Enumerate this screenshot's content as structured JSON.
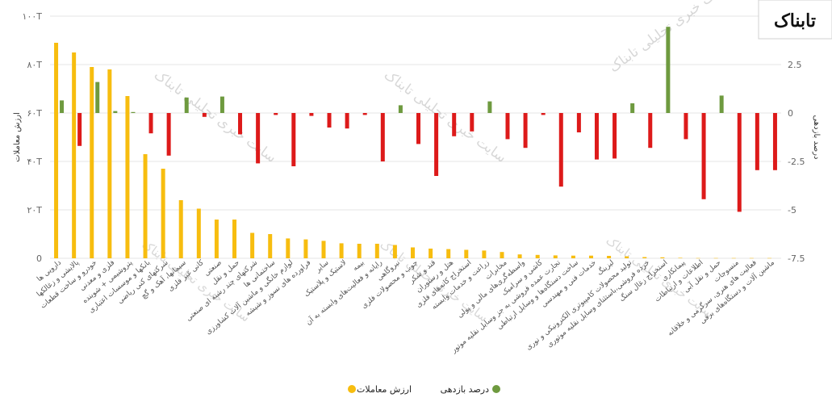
{
  "chart_data": {
    "type": "bar",
    "categories": [
      "دارویی ها",
      "پالایشی و زغالکها",
      "خودرو و ساخت قطعات",
      "فلزی و معدنی",
      "پتروشیمی + شوینده",
      "بانکها و موسسات اعتباری",
      "شرکتهای کنی ریاضی",
      "سیمانها، آهک و گچ",
      "کانی غیر فلزی",
      "صنعتی",
      "حمل و نقل",
      "شرکتهای چند رشته ای صنعتی",
      "ساختمانی ها",
      "لوازم خانگی و ماشین آلات کشاورزی",
      "فراورده های نسوز و شیشه",
      "سایر",
      "لاستیک و پلاستیک",
      "بیمه",
      "رایانه و فعالیت‌های وابسته به آن",
      "نیروگاهی",
      "چوب و محصولات فلزی",
      "قند و شکر",
      "هتل و رستوران",
      "استخراج کانه‌های فلزی",
      "زراعت و خدمات وابسته",
      "مخابرات",
      "واسطه‌گری‌های مالی و پولی",
      "کاشی و سرامیک",
      "تجارت عمده فروشی به جز وسایل نقلیه موتور",
      "ساخت دستگاه‌ها و وسایل ارتباطی",
      "خدمات فنی و مهندسی",
      "لیزینگ",
      "تولید محصولات کامپیوتری الکترونیکی و نوری",
      "خرده فروشی،باستثنای وسایل نقلیه موتوری",
      "استخراج زغال سنگ",
      "پیمانکاری",
      "اطلاعات و ارتباطات",
      "حمل و نقل آبی",
      "منسوجات",
      "فعالیت های هنری، سرگرمی و خلاقانه",
      "ماشین آلات و دستگاه‌های برقی"
    ],
    "series": [
      {
        "name": "ارزش معاملات",
        "axis": "left",
        "color": "#F7BD0F",
        "values": [
          89,
          85,
          79,
          78,
          67,
          43,
          37,
          24,
          20.5,
          16,
          16,
          10.5,
          10,
          8.2,
          7.8,
          7.2,
          6.2,
          6,
          6,
          5.5,
          4.5,
          4,
          3.8,
          3.5,
          3.2,
          2.6,
          1.6,
          1.4,
          1.2,
          1.1,
          1.1,
          1,
          0.8,
          0.5,
          0.4,
          0.2,
          0.1,
          0.1,
          0.1,
          0.1,
          0.1
        ]
      },
      {
        "name": "درصد بازدهی",
        "axis": "right",
        "color_pos": "#6E9A3F",
        "color_neg": "#DD1A1A",
        "values": [
          0.65,
          -1.7,
          1.6,
          0.1,
          0.05,
          -1.05,
          -2.2,
          0.8,
          -0.2,
          0.85,
          -1.1,
          -2.6,
          -0.1,
          -2.75,
          -0.15,
          -0.75,
          -0.8,
          -0.1,
          -2.5,
          0.4,
          -1.6,
          -3.25,
          -1.2,
          -0.95,
          0.6,
          -1.35,
          -1.8,
          -0.1,
          -3.8,
          -1,
          -2.4,
          -2.35,
          0.5,
          -1.8,
          4.45,
          -1.35,
          -4.45,
          0.9,
          -5.1,
          -2.95,
          -2.95
        ]
      }
    ],
    "yleft": {
      "label": "ارزش معاملات",
      "ylim": [
        0,
        100
      ],
      "ticks": [
        "0",
        "۲۰T",
        "۴۰T",
        "۶۰T",
        "۸۰T",
        "۱۰۰T"
      ]
    },
    "yright": {
      "label": "درصد بازدهی",
      "ylim": [
        -7.5,
        5
      ],
      "ticks": [
        "-7.5",
        "-5",
        "-2.5",
        "0",
        "2.5",
        "5"
      ]
    },
    "grid": "horizontal",
    "legend": "bottom-center"
  },
  "watermark": {
    "text": "سایت خبری تحلیلی تابناک",
    "logo": "تابناک"
  }
}
